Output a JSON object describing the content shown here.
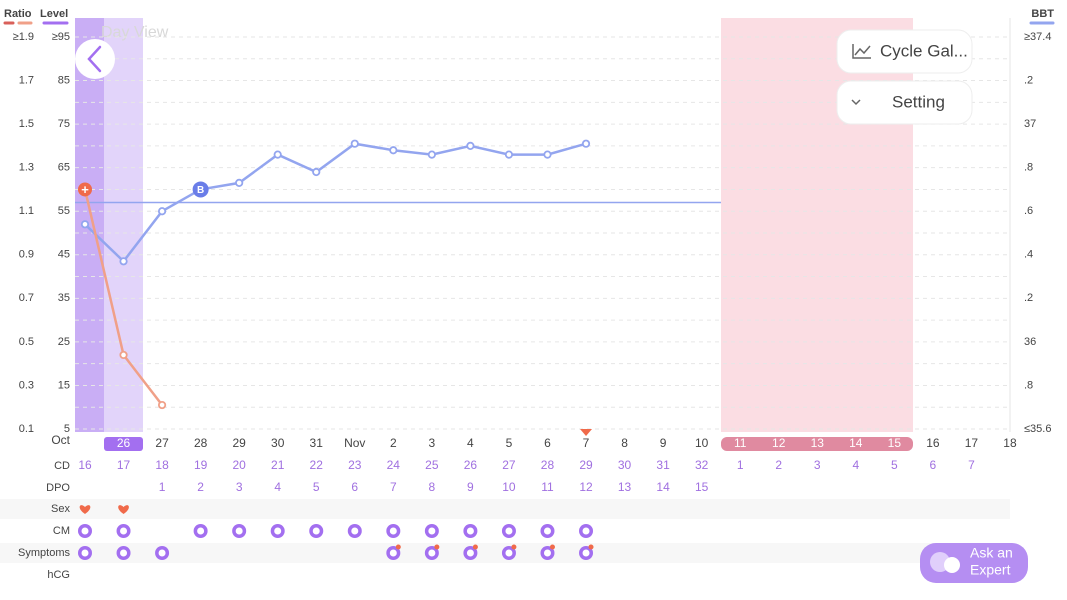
{
  "left_axis": {
    "ratio_label": "Ratio",
    "level_label": "Level",
    "ratio_ticks": [
      {
        "value": 1.9,
        "label": "≥1.9"
      },
      1.7,
      1.5,
      1.3,
      1.1,
      0.9,
      0.7,
      0.5,
      0.3,
      0.1
    ],
    "level_ticks": [
      {
        "value": 95,
        "label": "≥95"
      },
      85,
      75,
      65,
      55,
      45,
      35,
      25,
      15,
      5
    ]
  },
  "right_axis": {
    "label": "BBT",
    "ticks": [
      {
        "value": 37.4,
        "label": "≥37.4"
      },
      {
        "value": 37.2,
        "label": ".2"
      },
      37,
      {
        "value": 36.8,
        "label": ".8"
      },
      {
        "value": 36.6,
        "label": ".6"
      },
      {
        "value": 36.4,
        "label": ".4"
      },
      {
        "value": 36.2,
        "label": ".2"
      },
      36,
      {
        "value": 35.8,
        "label": ".8"
      },
      {
        "value": 35.6,
        "label": "≤35.6"
      }
    ]
  },
  "overlay_text": "Day View",
  "buttons": {
    "cycle": "Cycle Gal...",
    "setting": "Setting",
    "expert": [
      "Ask an",
      "Expert"
    ]
  },
  "chart_data": {
    "type": "line",
    "ratio_lim": [
      0.1,
      1.9
    ],
    "bbt_lim": [
      35.6,
      37.4
    ],
    "series": [
      {
        "name": "BBT",
        "color": "#93a5ef",
        "values": [
          36.54,
          36.37,
          36.6,
          36.7,
          36.73,
          36.86,
          36.78,
          36.91,
          36.88,
          36.86,
          36.9,
          36.86,
          36.86,
          36.91
        ]
      },
      {
        "name": "Ratio",
        "color": "#f0a088",
        "values": [
          1.2,
          0.44,
          0.21
        ]
      }
    ],
    "coverline": 36.64,
    "bbt_marker": "B",
    "ratio_marker": "+"
  },
  "rows": {
    "month": "Oct",
    "dates": [
      null,
      26,
      27,
      28,
      29,
      30,
      31,
      "Nov",
      2,
      3,
      4,
      5,
      6,
      7,
      8,
      9,
      10,
      11,
      12,
      13,
      14,
      15,
      16,
      17,
      18
    ],
    "cd_label": "CD",
    "cd": [
      16,
      17,
      18,
      19,
      20,
      21,
      22,
      23,
      24,
      25,
      26,
      27,
      28,
      29,
      30,
      31,
      32,
      1,
      2,
      3,
      4,
      5,
      6,
      7
    ],
    "dpo_label": "DPO",
    "dpo": [
      null,
      null,
      1,
      2,
      3,
      4,
      5,
      6,
      7,
      8,
      9,
      10,
      11,
      12,
      13,
      14,
      15
    ],
    "labels": [
      "Sex",
      "CM",
      "Symptoms",
      "hCG"
    ],
    "records": [
      [
        true,
        true
      ],
      [
        true,
        true,
        false,
        true,
        true,
        true,
        true,
        true,
        true,
        true,
        true,
        true,
        true,
        true
      ],
      [
        true,
        true,
        true,
        false,
        false,
        false,
        false,
        false,
        true,
        true,
        true,
        true,
        true,
        true
      ],
      []
    ]
  }
}
